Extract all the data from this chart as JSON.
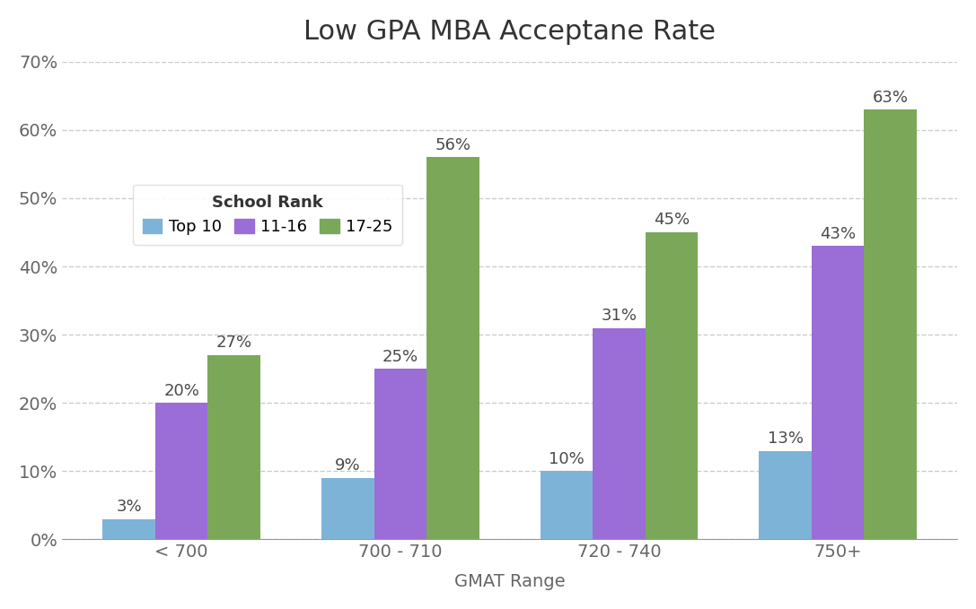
{
  "title": "Low GPA MBA Acceptane Rate",
  "xlabel": "GMAT Range",
  "categories": [
    "< 700",
    "700 - 710",
    "720 - 740",
    "750+"
  ],
  "series": {
    "Top 10": [
      0.03,
      0.09,
      0.1,
      0.13
    ],
    "11-16": [
      0.2,
      0.25,
      0.31,
      0.43
    ],
    "17-25": [
      0.27,
      0.56,
      0.45,
      0.63
    ]
  },
  "colors": {
    "Top 10": "#7EB3D8",
    "11-16": "#9B6DD6",
    "17-25": "#7BA858"
  },
  "ylim": [
    0,
    0.7
  ],
  "yticks": [
    0.0,
    0.1,
    0.2,
    0.3,
    0.4,
    0.5,
    0.6,
    0.7
  ],
  "ytick_labels": [
    "0%",
    "10%",
    "20%",
    "30%",
    "40%",
    "50%",
    "60%",
    "70%"
  ],
  "legend_title": "School Rank",
  "bar_width": 0.24,
  "background_color": "#FFFFFF",
  "title_fontsize": 22,
  "label_fontsize": 14,
  "tick_fontsize": 14,
  "annotation_fontsize": 13,
  "legend_fontsize": 13,
  "annotation_color": "#4A4A4A",
  "tick_color": "#666666",
  "title_color": "#333333"
}
